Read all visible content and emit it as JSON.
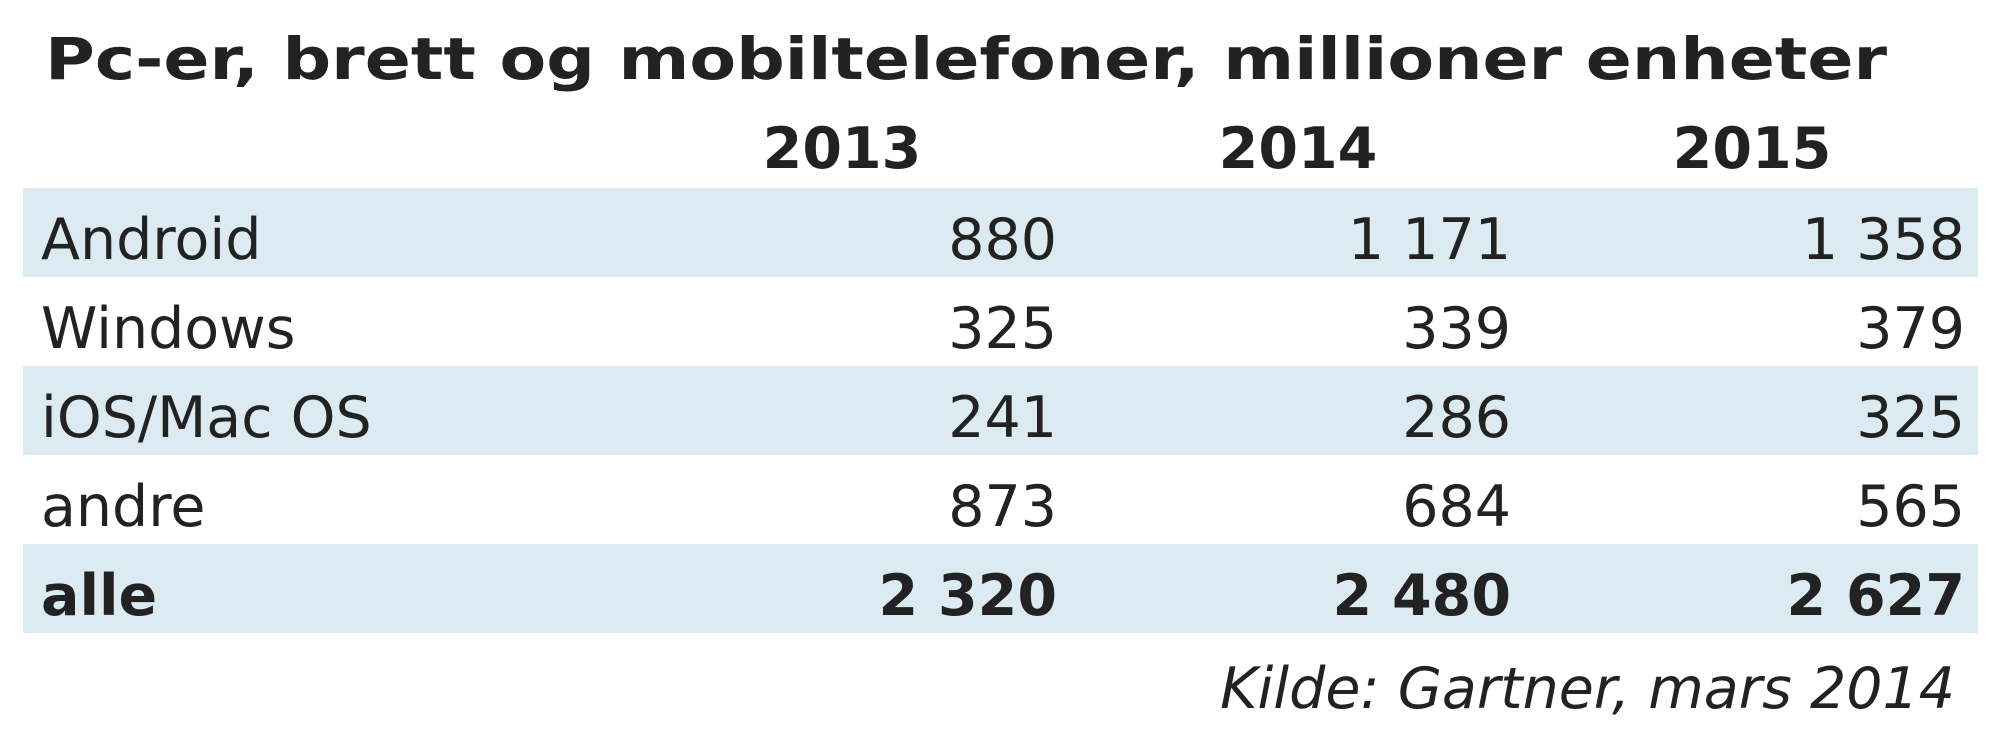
{
  "title": "Pc-er, brett og mobiltelefoner, millioner enheter",
  "table": {
    "columns": [
      "2013",
      "2014",
      "2015"
    ],
    "rows": [
      {
        "label": "Android",
        "values": [
          "880",
          "1 171",
          "1 358"
        ]
      },
      {
        "label": "Windows",
        "values": [
          "325",
          "339",
          "379"
        ]
      },
      {
        "label": "iOS/Mac OS",
        "values": [
          "241",
          "286",
          "325"
        ]
      },
      {
        "label": "andre",
        "values": [
          "873",
          "684",
          "565"
        ]
      },
      {
        "label": "alle",
        "values": [
          "2 320",
          "2 480",
          "2 627"
        ]
      }
    ]
  },
  "source": "Kilde: Gartner, mars 2014"
}
